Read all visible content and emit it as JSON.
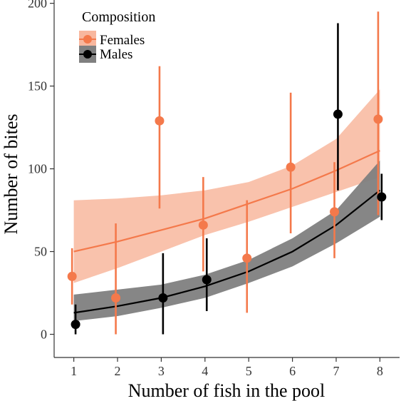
{
  "chart_data": {
    "type": "scatter",
    "title": "",
    "xlabel": "Number of fish in the pool",
    "ylabel": "Number of bites",
    "xlim": [
      0.55,
      8.45
    ],
    "ylim": [
      -14,
      202
    ],
    "x_ticks": [
      1,
      2,
      3,
      4,
      5,
      6,
      7,
      8
    ],
    "y_ticks": [
      0,
      50,
      100,
      150,
      200
    ],
    "grid": false,
    "legend": {
      "title": "Composition",
      "position": "top-left",
      "entries": [
        "Females",
        "Males"
      ]
    },
    "series": [
      {
        "name": "Females",
        "color": "#F4794B",
        "band_color": "#F8B79E",
        "x": [
          1,
          2,
          3,
          4,
          5,
          6,
          7,
          8
        ],
        "y": [
          35,
          22,
          129,
          66,
          46,
          101,
          74,
          130
        ],
        "y_lower": [
          18,
          0,
          76,
          38,
          13,
          61,
          46,
          72
        ],
        "y_upper": [
          52,
          67,
          162,
          95,
          81,
          146,
          104,
          195
        ],
        "fit_x": [
          1,
          2,
          3,
          4,
          5,
          6,
          7,
          8
        ],
        "fit_y": [
          50,
          56,
          63,
          70,
          79,
          88,
          99,
          111
        ],
        "fit_lower": [
          31,
          40,
          50,
          60,
          68,
          77,
          86,
          95
        ],
        "fit_upper": [
          81,
          82,
          84,
          87,
          92,
          102,
          118,
          148
        ]
      },
      {
        "name": "Males",
        "color": "#000000",
        "band_color": "#808080",
        "x": [
          1,
          2,
          3,
          4,
          5,
          6,
          7,
          8
        ],
        "y": [
          6,
          null,
          22,
          33,
          null,
          null,
          133,
          83
        ],
        "y_lower": [
          0,
          null,
          0,
          14,
          null,
          null,
          87,
          69
        ],
        "y_upper": [
          18,
          null,
          49,
          58,
          null,
          null,
          188,
          97
        ],
        "fit_x": [
          1,
          2,
          3,
          4,
          5,
          6,
          7,
          8
        ],
        "fit_y": [
          13,
          17,
          22,
          29,
          38,
          50,
          66,
          87
        ],
        "fit_lower": [
          8,
          11,
          16,
          22,
          31,
          41,
          55,
          71
        ],
        "fit_upper": [
          24,
          27,
          30,
          36,
          45,
          58,
          75,
          105
        ]
      }
    ]
  }
}
